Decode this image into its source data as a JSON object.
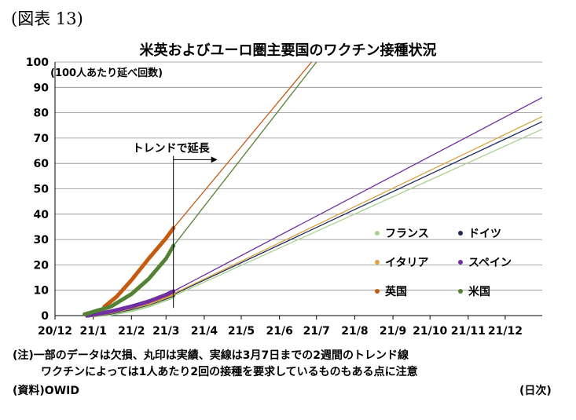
{
  "figure_label": "(図表 13)",
  "chart_data": {
    "type": "line",
    "title": "米英およびユーロ圏主要国のワクチン接種状況",
    "ylabel": "(100人あたり延べ回数)",
    "xlabel": "(日次)",
    "ylim": [
      0,
      100
    ],
    "yticks": [
      0,
      10,
      20,
      30,
      40,
      50,
      60,
      70,
      80,
      90,
      100
    ],
    "xlim": [
      "2020-12-01",
      "2021-12-31"
    ],
    "xticks": [
      "20/12",
      "21/1",
      "21/2",
      "21/3",
      "21/4",
      "21/5",
      "21/6",
      "21/7",
      "21/8",
      "21/9",
      "21/10",
      "21/11",
      "21/12"
    ],
    "grid": "horizontal",
    "annotation": "トレンドで延長",
    "annotation_date": "2021-03-07",
    "legend_position": "bottom-right",
    "series": [
      {
        "name": "フランス",
        "color": "#a9d08e",
        "actual": [
          [
            "2020-12-27",
            0
          ],
          [
            "2021-01-15",
            0.7
          ],
          [
            "2021-02-01",
            2.2
          ],
          [
            "2021-02-15",
            4.0
          ],
          [
            "2021-03-01",
            6.5
          ],
          [
            "2021-03-07",
            7.7
          ]
        ],
        "trend": [
          [
            "2021-03-07",
            7.7
          ],
          [
            "2021-12-31",
            73.5
          ]
        ]
      },
      {
        "name": "ドイツ",
        "color": "#1f2a5c",
        "actual": [
          [
            "2020-12-27",
            0
          ],
          [
            "2021-01-15",
            1.2
          ],
          [
            "2021-02-01",
            3.0
          ],
          [
            "2021-02-15",
            4.8
          ],
          [
            "2021-03-01",
            7.2
          ],
          [
            "2021-03-07",
            8.3
          ]
        ],
        "trend": [
          [
            "2021-03-07",
            8.3
          ],
          [
            "2021-12-31",
            76.5
          ]
        ]
      },
      {
        "name": "イタリア",
        "color": "#d9a441",
        "actual": [
          [
            "2020-12-27",
            0
          ],
          [
            "2021-01-15",
            1.4
          ],
          [
            "2021-02-01",
            3.3
          ],
          [
            "2021-02-15",
            5.0
          ],
          [
            "2021-03-01",
            7.5
          ],
          [
            "2021-03-07",
            8.6
          ]
        ],
        "trend": [
          [
            "2021-03-07",
            8.6
          ],
          [
            "2021-12-31",
            78.5
          ]
        ]
      },
      {
        "name": "スペイン",
        "color": "#7030a0",
        "actual": [
          [
            "2020-12-27",
            0
          ],
          [
            "2021-01-15",
            1.6
          ],
          [
            "2021-02-01",
            3.6
          ],
          [
            "2021-02-15",
            5.6
          ],
          [
            "2021-03-01",
            8.2
          ],
          [
            "2021-03-07",
            9.6
          ]
        ],
        "trend": [
          [
            "2021-03-07",
            9.6
          ],
          [
            "2021-12-31",
            86.0
          ]
        ]
      },
      {
        "name": "英国",
        "color": "#c55a11",
        "actual": [
          [
            "2021-01-10",
            3.5
          ],
          [
            "2021-01-20",
            7.5
          ],
          [
            "2021-02-01",
            14.0
          ],
          [
            "2021-02-15",
            22.5
          ],
          [
            "2021-03-01",
            30.5
          ],
          [
            "2021-03-07",
            34.5
          ]
        ],
        "trend": [
          [
            "2021-03-07",
            34.5
          ],
          [
            "2021-06-27",
            100
          ]
        ]
      },
      {
        "name": "米国",
        "color": "#548235",
        "actual": [
          [
            "2020-12-25",
            0.5
          ],
          [
            "2021-01-15",
            3.5
          ],
          [
            "2021-02-01",
            8.5
          ],
          [
            "2021-02-15",
            14.5
          ],
          [
            "2021-03-01",
            22.5
          ],
          [
            "2021-03-07",
            27.5
          ]
        ],
        "trend": [
          [
            "2021-03-07",
            27.5
          ],
          [
            "2021-07-01",
            100
          ]
        ]
      }
    ]
  },
  "notes": {
    "line1": "(注)一部のデータは欠損、丸印は実績、実線は3月7日までの2週間のトレンド線",
    "line2": "ワクチンによっては1人あたり2回の接種を要求しているものもある点に注意",
    "source": "(資料)OWID"
  }
}
